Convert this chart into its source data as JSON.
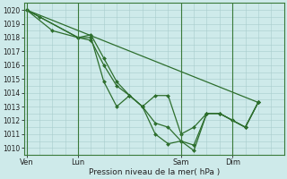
{
  "bg_color": "#ceeaea",
  "grid_color": "#a8cccc",
  "line_color": "#2d6e2d",
  "marker_color": "#2d6e2d",
  "xlabel": "Pression niveau de la mer( hPa )",
  "ylabel_ticks": [
    1010,
    1011,
    1012,
    1013,
    1014,
    1015,
    1016,
    1017,
    1018,
    1019,
    1020
  ],
  "ylim": [
    1009.5,
    1020.5
  ],
  "day_labels": [
    "Ven",
    "Lun",
    "Sam",
    "Dim"
  ],
  "day_positions": [
    0,
    2,
    6,
    8
  ],
  "total_units": 10,
  "series": [
    {
      "x": [
        0,
        0.5,
        2,
        2.5,
        3,
        3.5,
        4,
        4.5,
        5,
        5.5,
        6,
        6.5,
        7,
        7.5,
        8,
        8.5,
        9
      ],
      "y": [
        1020,
        1019.5,
        1018,
        1018.2,
        1016.5,
        1014.8,
        1013.8,
        1013.0,
        1013.8,
        1013.8,
        1011.0,
        1011.5,
        1012.5,
        1012.5,
        1012.0,
        1011.5,
        1013.3
      ]
    },
    {
      "x": [
        0,
        1,
        2,
        2.5,
        3,
        3.5,
        4,
        4.5,
        5,
        5.5,
        6,
        6.5,
        7,
        7.5,
        8,
        8.5,
        9
      ],
      "y": [
        1020,
        1018.5,
        1018,
        1017.8,
        1016.0,
        1014.5,
        1013.8,
        1013.0,
        1011.8,
        1011.5,
        1010.5,
        1010.2,
        1012.5,
        1012.5,
        1012.0,
        1011.5,
        1013.3
      ]
    },
    {
      "x": [
        0,
        2,
        2.5,
        3,
        3.5,
        4,
        4.5,
        5,
        5.5,
        6,
        6.5,
        7,
        7.5,
        8,
        8.5,
        9
      ],
      "y": [
        1020,
        1018,
        1018.0,
        1014.8,
        1013.0,
        1013.8,
        1013.0,
        1011.0,
        1010.3,
        1010.5,
        1009.8,
        1012.5,
        1012.5,
        1012.0,
        1011.5,
        1013.3
      ]
    },
    {
      "x": [
        0,
        9
      ],
      "y": [
        1020,
        1013.3
      ]
    }
  ]
}
